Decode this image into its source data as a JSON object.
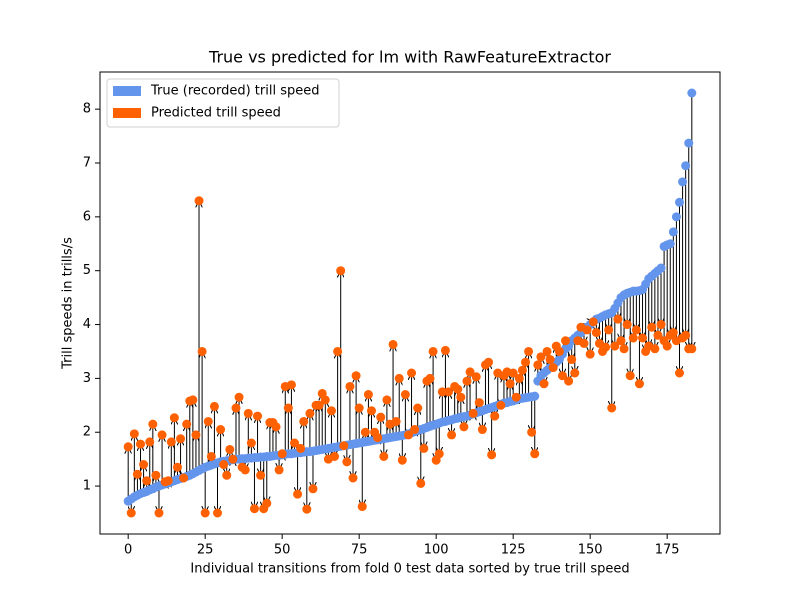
{
  "chart_data": {
    "type": "arrow-scatter",
    "title": "True vs predicted for lm with RawFeatureExtractor",
    "xlabel": "Individual transitions from fold 0 test data sorted by true trill speed",
    "ylabel": "Trill speeds in trills/s",
    "xlim": [
      -9.15,
      192.15
    ],
    "xticks": [
      0,
      25,
      50,
      75,
      100,
      125,
      150,
      175
    ],
    "ylim": [
      0.11,
      8.69
    ],
    "yticks": [
      1,
      2,
      3,
      4,
      5,
      6,
      7,
      8
    ],
    "legend": "upper left",
    "series": [
      {
        "name": "True (recorded) trill speed",
        "color": "#6495ed",
        "values": [
          0.72,
          0.76,
          0.8,
          0.83,
          0.86,
          0.88,
          0.9,
          0.93,
          0.95,
          0.98,
          1.0,
          1.02,
          1.04,
          1.06,
          1.08,
          1.1,
          1.12,
          1.14,
          1.16,
          1.18,
          1.2,
          1.23,
          1.26,
          1.29,
          1.32,
          1.35,
          1.37,
          1.39,
          1.41,
          1.43,
          1.45,
          1.46,
          1.47,
          1.48,
          1.49,
          1.5,
          1.5,
          1.51,
          1.51,
          1.52,
          1.52,
          1.53,
          1.53,
          1.54,
          1.54,
          1.55,
          1.55,
          1.56,
          1.57,
          1.57,
          1.58,
          1.59,
          1.6,
          1.6,
          1.61,
          1.62,
          1.62,
          1.63,
          1.64,
          1.64,
          1.65,
          1.66,
          1.67,
          1.68,
          1.69,
          1.7,
          1.71,
          1.72,
          1.73,
          1.74,
          1.75,
          1.76,
          1.77,
          1.78,
          1.79,
          1.8,
          1.81,
          1.82,
          1.83,
          1.84,
          1.85,
          1.86,
          1.87,
          1.88,
          1.89,
          1.9,
          1.91,
          1.92,
          1.93,
          1.94,
          1.95,
          1.97,
          1.99,
          2.01,
          2.03,
          2.05,
          2.07,
          2.09,
          2.11,
          2.13,
          2.15,
          2.17,
          2.19,
          2.2,
          2.22,
          2.23,
          2.25,
          2.26,
          2.28,
          2.29,
          2.3,
          2.32,
          2.34,
          2.36,
          2.38,
          2.4,
          2.42,
          2.44,
          2.46,
          2.48,
          2.5,
          2.52,
          2.54,
          2.55,
          2.57,
          2.58,
          2.6,
          2.62,
          2.63,
          2.64,
          2.65,
          2.66,
          2.67,
          2.95,
          3.05,
          3.1,
          3.15,
          3.2,
          3.25,
          3.3,
          3.35,
          3.45,
          3.55,
          3.6,
          3.7,
          3.75,
          3.8,
          3.85,
          3.9,
          3.95,
          4.0,
          4.05,
          4.1,
          4.12,
          4.15,
          4.18,
          4.2,
          4.22,
          4.3,
          4.4,
          4.5,
          4.55,
          4.58,
          4.6,
          4.62,
          4.62,
          4.63,
          4.65,
          4.75,
          4.85,
          4.9,
          4.95,
          5.0,
          5.05,
          5.45,
          5.48,
          5.5,
          5.72,
          6.0,
          6.27,
          6.65,
          6.95,
          7.37,
          8.3
        ]
      },
      {
        "name": "Predicted trill speed",
        "color": "#ff6000",
        "values": [
          1.73,
          0.5,
          1.97,
          1.22,
          1.78,
          1.4,
          1.1,
          1.82,
          2.15,
          1.2,
          0.5,
          1.95,
          1.08,
          1.1,
          1.82,
          2.27,
          1.35,
          1.88,
          1.15,
          2.15,
          2.58,
          2.6,
          1.95,
          6.3,
          3.5,
          0.5,
          2.2,
          1.55,
          2.48,
          0.5,
          2.05,
          1.4,
          1.2,
          1.68,
          1.5,
          2.45,
          2.65,
          1.35,
          1.3,
          2.35,
          1.8,
          0.58,
          2.3,
          1.2,
          0.58,
          0.68,
          2.18,
          2.18,
          2.1,
          1.3,
          1.6,
          2.85,
          2.45,
          2.88,
          1.8,
          0.85,
          1.7,
          2.2,
          0.57,
          2.35,
          0.95,
          2.5,
          2.5,
          2.72,
          2.6,
          1.5,
          2.4,
          1.55,
          3.5,
          5.0,
          1.75,
          1.45,
          2.85,
          1.15,
          3.05,
          2.45,
          0.62,
          2.0,
          2.7,
          2.4,
          2.0,
          1.9,
          2.28,
          1.55,
          2.6,
          2.15,
          3.63,
          2.2,
          3.0,
          1.48,
          2.7,
          1.95,
          3.1,
          2.05,
          2.45,
          1.05,
          1.7,
          2.95,
          3.0,
          3.5,
          1.48,
          1.6,
          2.75,
          3.52,
          2.75,
          1.95,
          2.85,
          2.8,
          2.65,
          2.1,
          2.95,
          3.12,
          2.35,
          3.03,
          2.55,
          2.05,
          3.25,
          3.3,
          1.58,
          2.3,
          3.1,
          2.5,
          3.05,
          3.12,
          2.9,
          3.1,
          2.65,
          3.0,
          3.15,
          3.3,
          3.5,
          2.0,
          1.6,
          3.25,
          3.4,
          2.9,
          3.5,
          3.35,
          3.2,
          3.6,
          3.5,
          3.05,
          3.7,
          2.95,
          3.35,
          3.1,
          3.7,
          3.95,
          3.65,
          3.9,
          3.45,
          4.05,
          3.85,
          3.65,
          3.5,
          3.58,
          3.9,
          2.45,
          3.6,
          4.1,
          3.7,
          3.55,
          4.0,
          3.05,
          3.75,
          3.9,
          2.9,
          3.75,
          3.5,
          3.6,
          3.95,
          3.55,
          3.8,
          4.0,
          3.7,
          3.6,
          3.8,
          3.85,
          3.7,
          3.1,
          3.75,
          3.8,
          3.55,
          3.55
        ]
      }
    ]
  }
}
